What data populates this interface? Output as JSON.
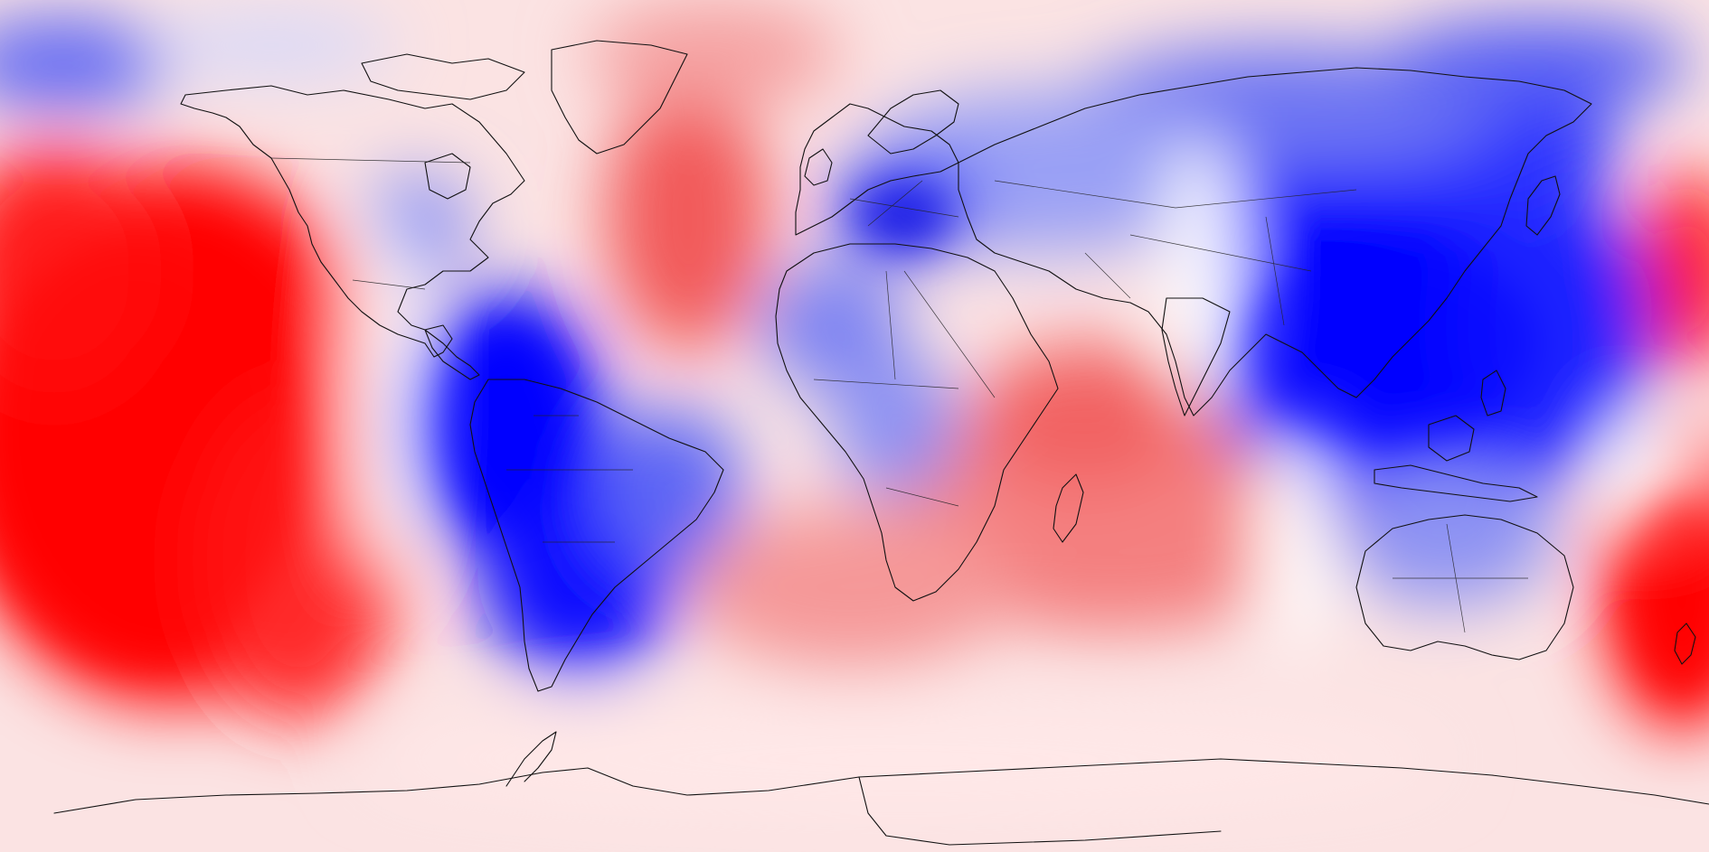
{
  "map": {
    "projection": "equirectangular",
    "field_type": "anomaly-contour",
    "palette": {
      "strong_negative": "#0000ff",
      "mid_negative": "#6a72f2",
      "weak_negative": "#d8dcfa",
      "neutral": "#ffffff",
      "weak_positive": "#f9cfcf",
      "mid_positive": "#f17474",
      "strong_positive": "#ff0000"
    },
    "coastline_color": "#111111",
    "gridlines": false,
    "legend": "none"
  }
}
